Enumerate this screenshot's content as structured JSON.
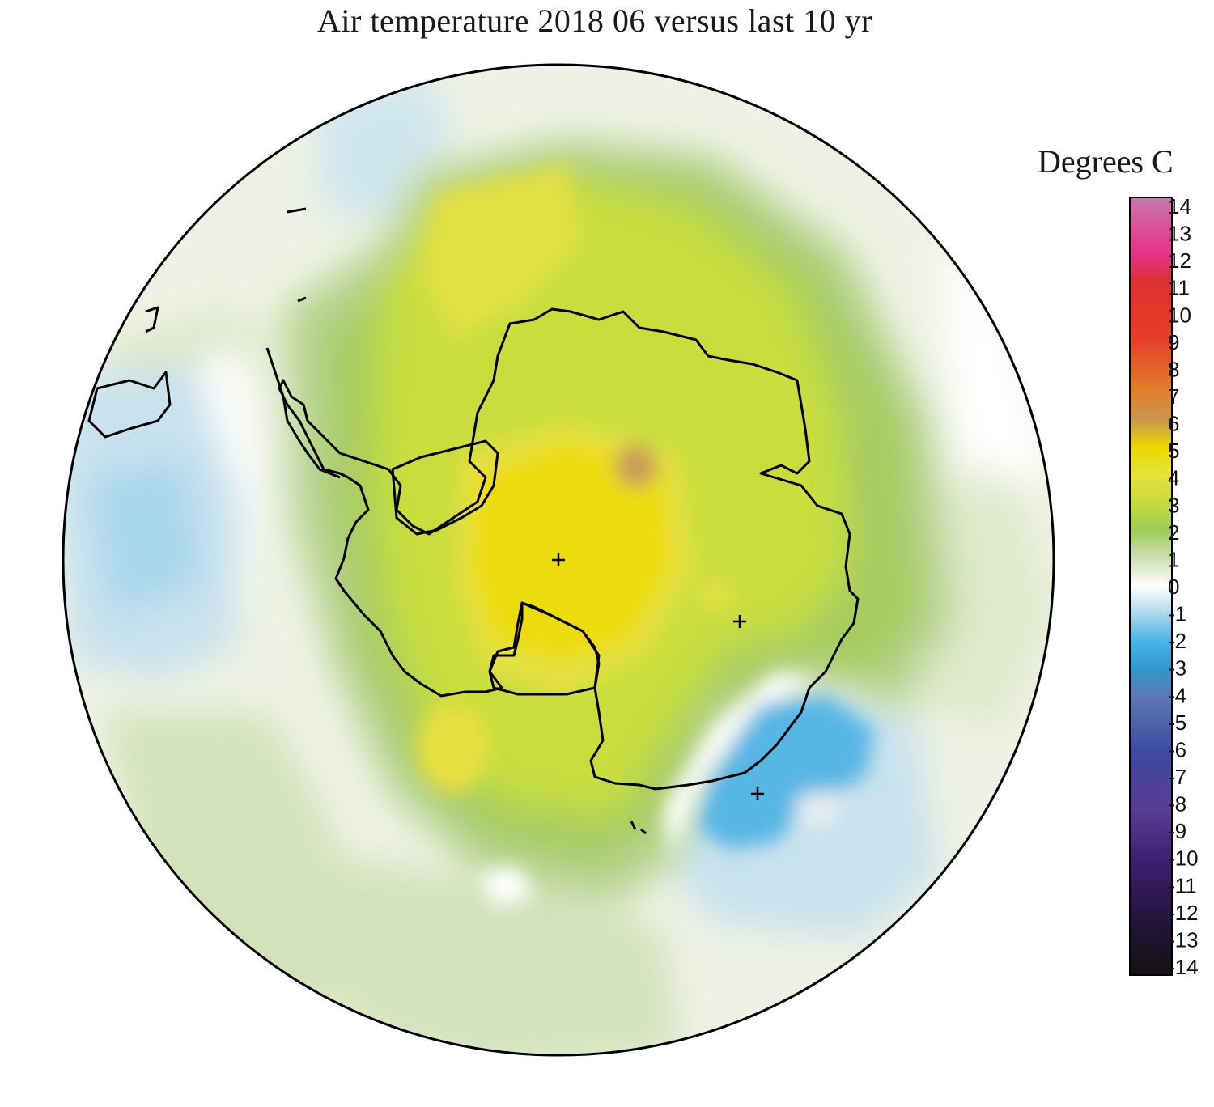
{
  "title": "Air temperature 2018 06 versus last 10 yr",
  "legend": {
    "title": "Degrees C",
    "min": -14,
    "max": 14,
    "ticks": [
      "14",
      "13",
      "12",
      "11",
      "10",
      "9",
      "8",
      "7",
      "6",
      "5",
      "4",
      "3",
      "2",
      "1",
      "0",
      "-1",
      "-2",
      "-3",
      "-4",
      "-5",
      "-6",
      "-7",
      "-8",
      "-9",
      "-10",
      "-11",
      "-12",
      "-13",
      "-14"
    ],
    "stops": [
      {
        "v": -14,
        "c": "#121212"
      },
      {
        "v": -12,
        "c": "#24143c"
      },
      {
        "v": -10,
        "c": "#3c1e6e"
      },
      {
        "v": -8,
        "c": "#5a3c96"
      },
      {
        "v": -6,
        "c": "#3c4aa0"
      },
      {
        "v": -4,
        "c": "#5a78b4"
      },
      {
        "v": -3,
        "c": "#3296cc"
      },
      {
        "v": -2,
        "c": "#48b4e6"
      },
      {
        "v": -1,
        "c": "#a8d8ea"
      },
      {
        "v": 0,
        "c": "#ffffff"
      },
      {
        "v": 1,
        "c": "#cfe0b4"
      },
      {
        "v": 2,
        "c": "#9ccc5a"
      },
      {
        "v": 3,
        "c": "#c6dc3c"
      },
      {
        "v": 4,
        "c": "#e6e23a"
      },
      {
        "v": 5,
        "c": "#ecd800"
      },
      {
        "v": 6,
        "c": "#c89650"
      },
      {
        "v": 7,
        "c": "#e0802c"
      },
      {
        "v": 9,
        "c": "#e63c28"
      },
      {
        "v": 11,
        "c": "#dc3232"
      },
      {
        "v": 12,
        "c": "#e6328c"
      },
      {
        "v": 14,
        "c": "#c878aa"
      }
    ]
  },
  "colors": {
    "ocean_neutral": "#eef2e4",
    "pale_green": "#d4e2bc",
    "mid_green": "#b8d492",
    "green": "#a6cc60",
    "yellow_green": "#c8de3e",
    "yellow": "#e4e044",
    "bright_yellow": "#ecdc10",
    "hot_spot": "#c89a58",
    "pale_blue": "#c8e2ee",
    "light_blue": "#a8d6ec",
    "blue": "#56b6e4",
    "outline": "#000000"
  },
  "markers": [
    "pole-cross-marker",
    "station-cross-marker",
    "station-cross-marker"
  ]
}
